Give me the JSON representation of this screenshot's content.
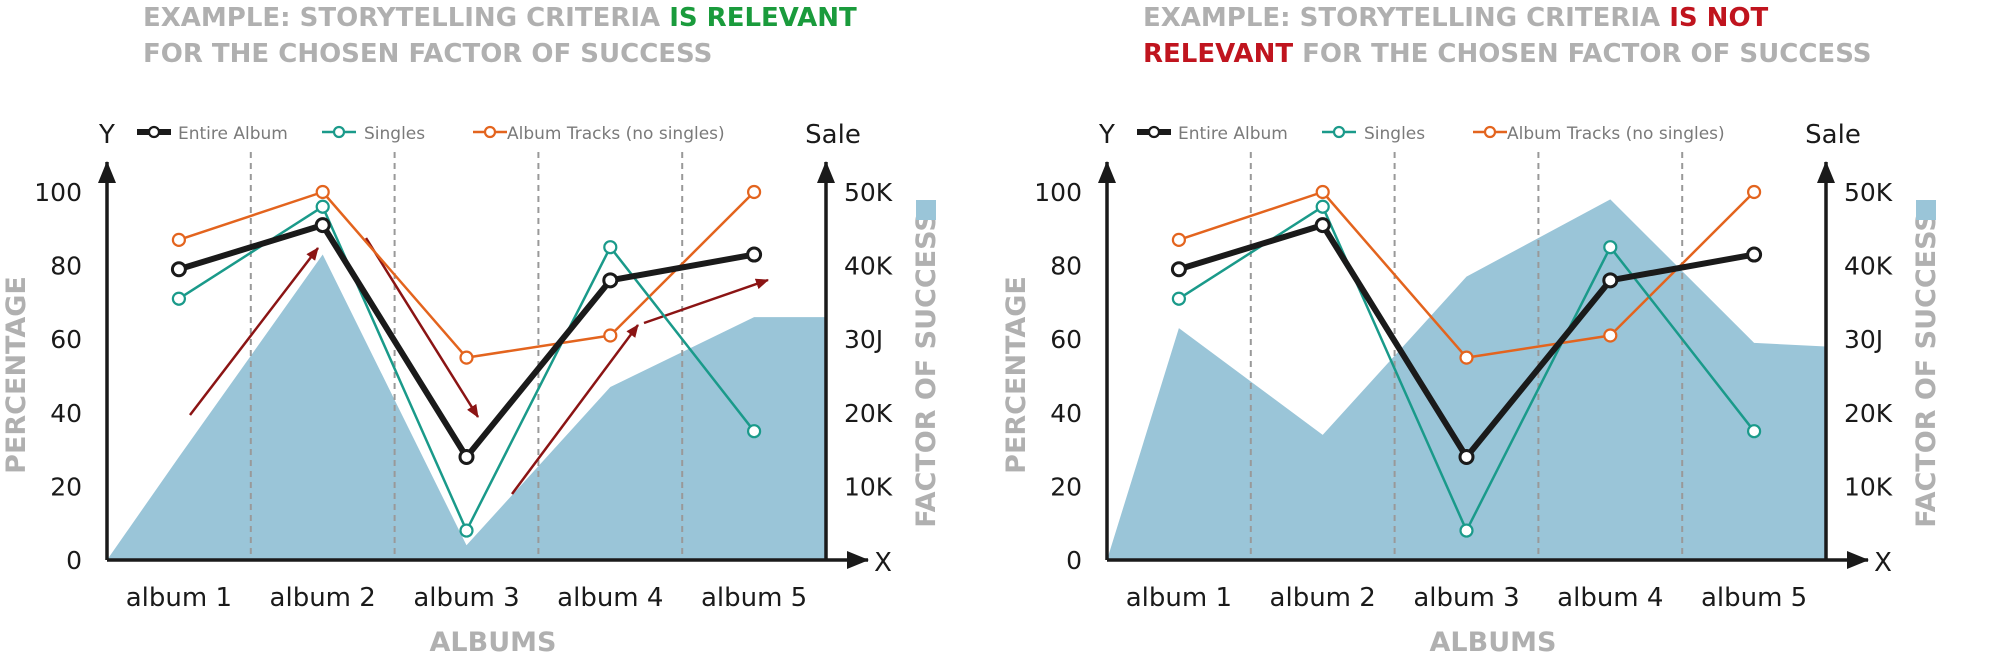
{
  "chart_data": [
    {
      "type": "line",
      "title": "EXAMPLE: STORYTELLING CRITERIA IS RELEVANT FOR THE CHOSEN FACTOR OF SUCCESS",
      "title_parts": {
        "prefix": "EXAMPLE: STORYTELLING CRITERIA ",
        "emphasis": "IS RELEVANT",
        "suffix": " FOR THE CHOSEN FACTOR OF SUCCESS",
        "emphasis_color": "#1a9b3c"
      },
      "categories": [
        "album 1",
        "album 2",
        "album 3",
        "album 4",
        "album 5"
      ],
      "xlabel": "ALBUMS",
      "ylabel": "PERCENTAGE",
      "y_axis_letter": "Y",
      "x_axis_letter": "X",
      "ylim": [
        0,
        100
      ],
      "y_ticks": [
        "0",
        "20",
        "40",
        "60",
        "80",
        "100"
      ],
      "secondary_axis": {
        "title": "Sale",
        "label": "FACTOR OF SUCCESS",
        "ticks": [
          "10K",
          "20K",
          "30J",
          "40K",
          "50K"
        ],
        "range": [
          0,
          50000
        ]
      },
      "series": [
        {
          "name": "Entire Album",
          "color": "#1a1a1a",
          "values": [
            79,
            91,
            28,
            76,
            83
          ]
        },
        {
          "name": "Singles",
          "color": "#1a9a8a",
          "values": [
            71,
            96,
            8,
            85,
            35
          ]
        },
        {
          "name": "Album Tracks (no singles)",
          "color": "#e3641e",
          "values": [
            87,
            100,
            55,
            61,
            100
          ]
        }
      ],
      "area": {
        "color": "#9ac5d8",
        "x": [
          0.5,
          1,
          2,
          3,
          4,
          5,
          5.5
        ],
        "values": [
          0,
          14000,
          41500,
          2000,
          23500,
          33000,
          33000
        ]
      },
      "annotations": "dark red trend arrows",
      "arrow_color": "#8b1414",
      "legend": "top",
      "grid": "vertical dashed separators"
    },
    {
      "type": "line",
      "title": "EXAMPLE: STORYTELLING CRITERIA IS NOT RELEVANT FOR THE CHOSEN FACTOR OF SUCCESS",
      "title_parts": {
        "prefix": "EXAMPLE: STORYTELLING CRITERIA ",
        "emphasis": "IS NOT RELEVANT",
        "suffix": " FOR THE CHOSEN FACTOR OF SUCCESS",
        "emphasis_color": "#c0141e"
      },
      "categories": [
        "album 1",
        "album 2",
        "album 3",
        "album 4",
        "album 5"
      ],
      "xlabel": "ALBUMS",
      "ylabel": "PERCENTAGE",
      "y_axis_letter": "Y",
      "x_axis_letter": "X",
      "ylim": [
        0,
        100
      ],
      "y_ticks": [
        "0",
        "20",
        "40",
        "60",
        "80",
        "100"
      ],
      "secondary_axis": {
        "title": "Sale",
        "label": "FACTOR OF SUCCESS",
        "ticks": [
          "10K",
          "20K",
          "30J",
          "40K",
          "50K"
        ],
        "range": [
          0,
          50000
        ]
      },
      "series": [
        {
          "name": "Entire Album",
          "color": "#1a1a1a",
          "values": [
            79,
            91,
            28,
            76,
            83
          ]
        },
        {
          "name": "Singles",
          "color": "#1a9a8a",
          "values": [
            71,
            96,
            8,
            85,
            35
          ]
        },
        {
          "name": "Album Tracks (no singles)",
          "color": "#e3641e",
          "values": [
            87,
            100,
            55,
            61,
            100
          ]
        }
      ],
      "area": {
        "color": "#9ac5d8",
        "x": [
          0.5,
          1,
          2,
          3,
          4,
          5,
          5.5
        ],
        "values": [
          0,
          31500,
          17000,
          38500,
          49000,
          29500,
          29000
        ]
      },
      "legend": "top",
      "grid": "vertical dashed separators"
    }
  ]
}
